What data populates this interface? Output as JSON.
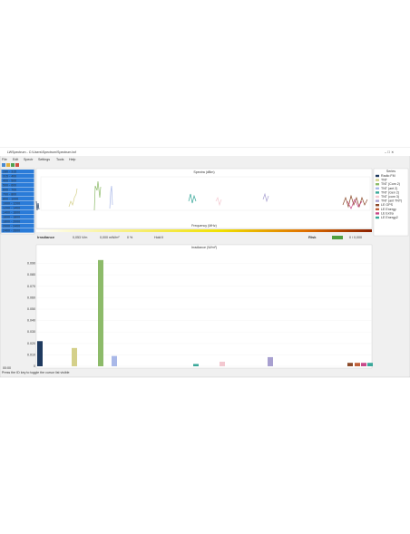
{
  "window": {
    "title": "LWSpectrum - C:\\Users\\Spectrum\\Spectrum.lwf",
    "menu": [
      "File",
      "Edit",
      "Spectr",
      "Settings",
      "Tools",
      "Help"
    ],
    "bands": [
      "280 - 315",
      "315 - 400",
      "400 - 500",
      "500 - 600",
      "600 - 700",
      "700 - 800",
      "800 - 1000",
      "1000 - 1200",
      "1200 - 1400",
      "1400 - 1600",
      "1600 - 1800",
      "1800 - 2000",
      "2000 - 2400",
      "2400 - 2600"
    ],
    "spectra_title": "Spectra (dBm)",
    "spectra_xlabel": "Frequency (MHz)",
    "legend_title": "Series",
    "legend": [
      {
        "name": "Radio FM",
        "color": "#1f3a5f"
      },
      {
        "name": "TNT",
        "color": "#d4d08a"
      },
      {
        "name": "TNT (Com 2)",
        "color": "#8dbb6a"
      },
      {
        "name": "TNT (ant 2)",
        "color": "#a9b8e8"
      },
      {
        "name": "TNT (Gen 2)",
        "color": "#3aa89a"
      },
      {
        "name": "TNT (com 3)",
        "color": "#f3c8d0"
      },
      {
        "name": "TNT (ant TNT)",
        "color": "#a8a0d0"
      },
      {
        "name": "LE GPS",
        "color": "#8b4a2a"
      },
      {
        "name": "LE Energy",
        "color": "#c0603a"
      },
      {
        "name": "LE Extra",
        "color": "#c84a8a"
      },
      {
        "name": "LE Energy2",
        "color": "#3aa89a"
      }
    ],
    "irradiance_label": "Irradiance",
    "fields": [
      "0,053 V/m",
      "0,000 mW/m²",
      "0 %",
      "Hold Il"
    ],
    "risk_label": "Risk",
    "risk_value": "0 / 0,000",
    "status": "Press the ID key to toggle the cursor list visible",
    "clock": "00:00"
  },
  "chart_data": {
    "type": "bar",
    "title": "Irradiance (W/m²)",
    "x": [
      1,
      39,
      68,
      83,
      173,
      202,
      255,
      343,
      351,
      358,
      365
    ],
    "xlim": [
      0,
      370
    ],
    "values": [
      0.022,
      0.016,
      0.093,
      0.009,
      0.002,
      0.004,
      0.008,
      0.003,
      0.003,
      0.003,
      0.003
    ],
    "colors": [
      "#1f3a5f",
      "#d4d08a",
      "#8dbb6a",
      "#a9b8e8",
      "#3aa89a",
      "#f3c8d0",
      "#a8a0d0",
      "#8b4a2a",
      "#c0603a",
      "#c84a8a",
      "#3aa89a"
    ],
    "ylim": [
      0,
      0.1
    ],
    "yticks": [
      0,
      {
        "value": 0.01,
        "label": "0.010"
      },
      {
        "value": 0.02,
        "label": "0.020"
      },
      {
        "value": 0.03,
        "label": "0.030"
      },
      {
        "value": 0.04,
        "label": "0.040"
      },
      {
        "value": 0.05,
        "label": "0.050"
      },
      {
        "value": 0.06,
        "label": "0.060"
      },
      {
        "value": 0.07,
        "label": "0.070"
      },
      {
        "value": 0.08,
        "label": "0.080"
      },
      {
        "value": 0.09,
        "label": "0.090"
      }
    ],
    "grid": true
  }
}
